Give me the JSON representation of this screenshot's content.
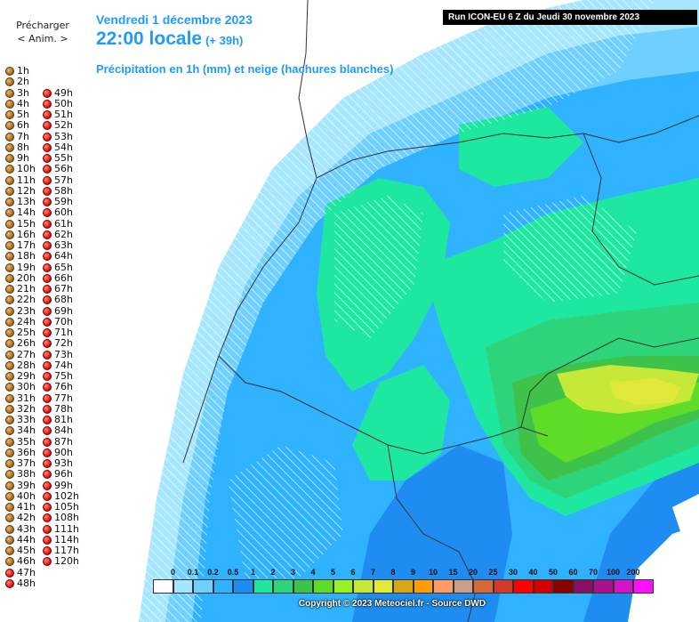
{
  "sidebar": {
    "preload_label": "Précharger",
    "anim_link": "< Anim. >",
    "left_hours": [
      "1h",
      "2h",
      "3h",
      "4h",
      "5h",
      "6h",
      "7h",
      "8h",
      "9h",
      "10h",
      "11h",
      "12h",
      "13h",
      "14h",
      "15h",
      "16h",
      "17h",
      "18h",
      "19h",
      "20h",
      "21h",
      "22h",
      "23h",
      "24h",
      "25h",
      "26h",
      "27h",
      "28h",
      "29h",
      "30h",
      "31h",
      "32h",
      "33h",
      "34h",
      "35h",
      "36h",
      "37h",
      "38h",
      "39h",
      "40h",
      "41h",
      "42h",
      "43h",
      "44h",
      "45h",
      "46h",
      "47h",
      "48h"
    ],
    "left_dot_colors": [
      "brown",
      "brown",
      "brown",
      "brown",
      "brown",
      "brown",
      "brown",
      "brown",
      "brown",
      "brown",
      "brown",
      "brown",
      "brown",
      "brown",
      "brown",
      "brown",
      "brown",
      "brown",
      "brown",
      "brown",
      "brown",
      "brown",
      "brown",
      "brown",
      "brown",
      "brown",
      "brown",
      "brown",
      "brown",
      "brown",
      "brown",
      "brown",
      "brown",
      "brown",
      "brown",
      "brown",
      "brown",
      "brown",
      "brown",
      "brown",
      "brown",
      "brown",
      "brown",
      "brown",
      "brown",
      "brown",
      "red",
      "red"
    ],
    "right_hours": [
      "49h",
      "50h",
      "51h",
      "52h",
      "53h",
      "54h",
      "55h",
      "56h",
      "57h",
      "58h",
      "59h",
      "60h",
      "61h",
      "62h",
      "63h",
      "64h",
      "65h",
      "66h",
      "67h",
      "68h",
      "69h",
      "70h",
      "71h",
      "72h",
      "73h",
      "74h",
      "75h",
      "76h",
      "77h",
      "78h",
      "81h",
      "84h",
      "87h",
      "90h",
      "93h",
      "96h",
      "99h",
      "102h",
      "105h",
      "108h",
      "111h",
      "114h",
      "117h",
      "120h"
    ]
  },
  "map": {
    "title_date": "Vendredi 1 décembre 2023",
    "title_time": "22:00 locale",
    "title_offset": "(+ 39h)",
    "title_param": "Précipitation en 1h (mm) et neige (hachures blanches)",
    "run_info": "Run ICON-EU 6 Z du Jeudi 30 novembre 2023",
    "copyright": "Copyright © 2023 Meteociel.fr - Source DWD",
    "legend": {
      "labels": [
        "0",
        "0.1",
        "0.2",
        "0.5",
        "1",
        "2",
        "3",
        "4",
        "5",
        "6",
        "7",
        "8",
        "9",
        "10",
        "15",
        "20",
        "25",
        "30",
        "40",
        "50",
        "60",
        "70",
        "100",
        "200"
      ],
      "colors": [
        "#ffffff",
        "#a6e6ff",
        "#6fd0ff",
        "#2fb2ff",
        "#1f8cf2",
        "#1ee8a0",
        "#2ed47a",
        "#3fc24a",
        "#5fdc28",
        "#98f028",
        "#c6e838",
        "#e2e83a",
        "#d6a818",
        "#ff9c0c",
        "#ff9c66",
        "#c8a08a",
        "#d46a3a",
        "#d43a2a",
        "#ff0000",
        "#d20000",
        "#8a0000",
        "#8a1060",
        "#a8108c",
        "#d016c8",
        "#ff10ff"
      ]
    }
  }
}
